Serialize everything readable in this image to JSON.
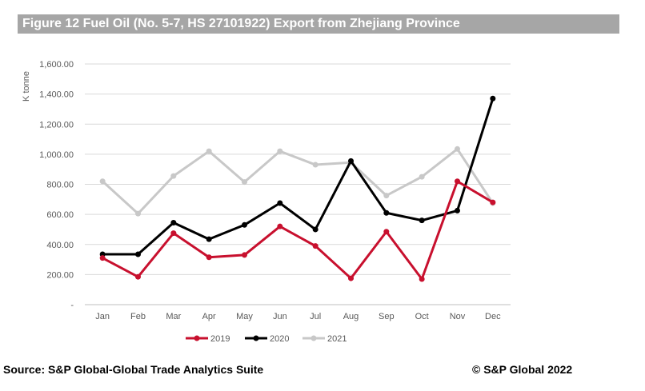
{
  "header": {
    "title": "Figure 12 Fuel Oil (No. 5-7, HS 27101922) Export from Zhejiang Province"
  },
  "footer": {
    "source": "Source: S&P Global-Global Trade Analytics Suite",
    "copyright": "©  S&P Global 2022"
  },
  "chart_data": {
    "type": "line",
    "title": "",
    "xlabel": "",
    "ylabel": "K tonne",
    "categories": [
      "Jan",
      "Feb",
      "Mar",
      "Apr",
      "May",
      "Jun",
      "Jul",
      "Aug",
      "Sep",
      "Oct",
      "Nov",
      "Dec"
    ],
    "ylim": [
      0,
      1600
    ],
    "yticks": [
      0,
      200,
      400,
      600,
      800,
      1000,
      1200,
      1400,
      1600
    ],
    "ytick_labels": [
      "-",
      "200.00",
      "400.00",
      "600.00",
      "800.00",
      "1,000.00",
      "1,200.00",
      "1,400.00",
      "1,600.00"
    ],
    "grid": true,
    "legend_position": "bottom",
    "series": [
      {
        "name": "2019",
        "color": "#c8102e",
        "values": [
          310,
          185,
          475,
          315,
          330,
          520,
          390,
          175,
          485,
          170,
          820,
          680
        ]
      },
      {
        "name": "2020",
        "color": "#000000",
        "values": [
          335,
          335,
          545,
          435,
          530,
          675,
          500,
          955,
          610,
          560,
          625,
          1370
        ]
      },
      {
        "name": "2021",
        "color": "#c8c8c8",
        "values": [
          820,
          605,
          855,
          1020,
          815,
          1020,
          930,
          945,
          725,
          850,
          1035,
          675
        ]
      }
    ]
  }
}
